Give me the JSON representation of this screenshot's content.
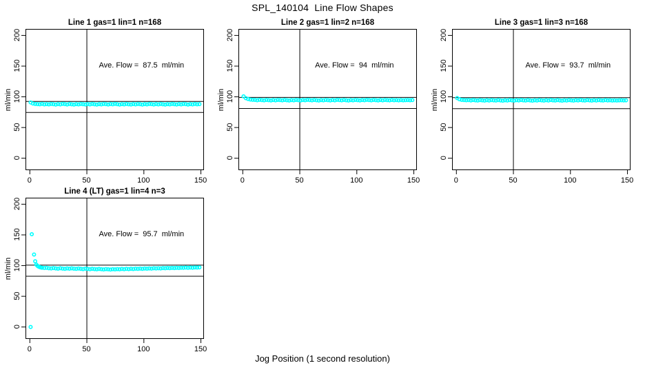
{
  "figure": {
    "title": "SPL_140104  Line Flow Shapes",
    "xlabel": "Jog Position (1 second resolution)",
    "background": "#ffffff",
    "axis_color": "#000000",
    "point_color": "#00ffff"
  },
  "chart_data": [
    {
      "type": "scatter",
      "title": "Line 1 gas=1 lin=1 n=168",
      "annotation": "Ave. Flow =  87.5  ml/min",
      "ave_flow": 87.5,
      "n": 168,
      "ylabel": "ml/min",
      "x_ticks": [
        0,
        50,
        100,
        150
      ],
      "y_ticks": [
        0,
        50,
        100,
        150,
        200
      ],
      "xlim": [
        -3.5,
        153
      ],
      "ylim": [
        -20,
        210
      ],
      "vline_x": 50,
      "hlines": [
        92.5,
        74.5
      ],
      "grid": false,
      "points": [
        [
          1,
          90.3
        ],
        [
          3,
          88.6
        ],
        [
          5,
          87.9
        ],
        [
          7,
          87.5
        ],
        [
          9,
          87.3
        ],
        [
          11,
          88.0
        ],
        [
          13,
          87.2
        ],
        [
          15,
          87.6
        ],
        [
          17,
          87.1
        ],
        [
          19,
          87.8
        ],
        [
          21,
          87.4
        ],
        [
          23,
          86.9
        ],
        [
          25,
          87.7
        ],
        [
          27,
          87.2
        ],
        [
          29,
          88.0
        ],
        [
          31,
          87.5
        ],
        [
          33,
          87.0
        ],
        [
          35,
          87.8
        ],
        [
          37,
          87.3
        ],
        [
          39,
          86.8
        ],
        [
          41,
          87.6
        ],
        [
          43,
          87.1
        ],
        [
          45,
          87.9
        ],
        [
          47,
          87.4
        ],
        [
          49,
          87.0
        ],
        [
          51,
          87.7
        ],
        [
          53,
          87.2
        ],
        [
          55,
          87.8
        ],
        [
          57,
          87.3
        ],
        [
          59,
          86.9
        ],
        [
          61,
          87.6
        ],
        [
          63,
          87.2
        ],
        [
          65,
          87.9
        ],
        [
          67,
          87.5
        ],
        [
          69,
          87.0
        ],
        [
          71,
          87.7
        ],
        [
          73,
          87.3
        ],
        [
          75,
          88.0
        ],
        [
          77,
          87.4
        ],
        [
          79,
          86.9
        ],
        [
          81,
          87.6
        ],
        [
          83,
          87.1
        ],
        [
          85,
          87.8
        ],
        [
          87,
          87.3
        ],
        [
          89,
          87.0
        ],
        [
          91,
          87.7
        ],
        [
          93,
          87.2
        ],
        [
          95,
          87.9
        ],
        [
          97,
          87.4
        ],
        [
          99,
          86.8
        ],
        [
          101,
          87.6
        ],
        [
          103,
          87.1
        ],
        [
          105,
          87.8
        ],
        [
          107,
          87.5
        ],
        [
          109,
          87.0
        ],
        [
          111,
          87.7
        ],
        [
          113,
          87.2
        ],
        [
          115,
          87.9
        ],
        [
          117,
          87.3
        ],
        [
          119,
          86.9
        ],
        [
          121,
          87.6
        ],
        [
          123,
          87.2
        ],
        [
          125,
          87.8
        ],
        [
          127,
          87.4
        ],
        [
          129,
          87.0
        ],
        [
          131,
          87.7
        ],
        [
          133,
          87.1
        ],
        [
          135,
          87.9
        ],
        [
          137,
          87.5
        ],
        [
          139,
          86.9
        ],
        [
          141,
          87.6
        ],
        [
          143,
          87.2
        ],
        [
          145,
          87.8
        ],
        [
          147,
          87.3
        ],
        [
          149,
          87.5
        ]
      ]
    },
    {
      "type": "scatter",
      "title": "Line 2 gas=1 lin=2 n=168",
      "annotation": "Ave. Flow =  94  ml/min",
      "ave_flow": 94,
      "n": 168,
      "ylabel": "ml/min",
      "x_ticks": [
        0,
        50,
        100,
        150
      ],
      "y_ticks": [
        0,
        50,
        100,
        150,
        200
      ],
      "xlim": [
        -3.5,
        153
      ],
      "ylim": [
        -20,
        210
      ],
      "vline_x": 50,
      "hlines": [
        99,
        81
      ],
      "grid": false,
      "points": [
        [
          1,
          100.2
        ],
        [
          3,
          97.2
        ],
        [
          5,
          95.8
        ],
        [
          7,
          95.0
        ],
        [
          9,
          94.6
        ],
        [
          11,
          94.4
        ],
        [
          13,
          93.9
        ],
        [
          15,
          94.6
        ],
        [
          17,
          94.1
        ],
        [
          19,
          93.7
        ],
        [
          21,
          94.4
        ],
        [
          23,
          94.0
        ],
        [
          25,
          93.6
        ],
        [
          27,
          94.3
        ],
        [
          29,
          93.8
        ],
        [
          31,
          94.5
        ],
        [
          33,
          94.1
        ],
        [
          35,
          93.7
        ],
        [
          37,
          94.4
        ],
        [
          39,
          93.9
        ],
        [
          41,
          93.5
        ],
        [
          43,
          94.2
        ],
        [
          45,
          93.8
        ],
        [
          47,
          94.5
        ],
        [
          49,
          94.0
        ],
        [
          51,
          93.6
        ],
        [
          53,
          94.3
        ],
        [
          55,
          93.9
        ],
        [
          57,
          94.6
        ],
        [
          59,
          94.1
        ],
        [
          61,
          93.7
        ],
        [
          63,
          94.4
        ],
        [
          65,
          93.9
        ],
        [
          67,
          93.5
        ],
        [
          69,
          94.2
        ],
        [
          71,
          93.8
        ],
        [
          73,
          94.5
        ],
        [
          75,
          94.0
        ],
        [
          77,
          93.6
        ],
        [
          79,
          94.3
        ],
        [
          81,
          93.8
        ],
        [
          83,
          94.6
        ],
        [
          85,
          94.1
        ],
        [
          87,
          93.7
        ],
        [
          89,
          94.4
        ],
        [
          91,
          93.9
        ],
        [
          93,
          93.5
        ],
        [
          95,
          94.2
        ],
        [
          97,
          93.8
        ],
        [
          99,
          94.5
        ],
        [
          101,
          94.0
        ],
        [
          103,
          93.6
        ],
        [
          105,
          94.3
        ],
        [
          107,
          93.9
        ],
        [
          109,
          94.6
        ],
        [
          111,
          94.1
        ],
        [
          113,
          93.7
        ],
        [
          115,
          94.4
        ],
        [
          117,
          94.0
        ],
        [
          119,
          93.6
        ],
        [
          121,
          94.3
        ],
        [
          123,
          93.8
        ],
        [
          125,
          94.5
        ],
        [
          127,
          94.0
        ],
        [
          129,
          93.7
        ],
        [
          131,
          94.4
        ],
        [
          133,
          93.9
        ],
        [
          135,
          94.2
        ],
        [
          137,
          93.8
        ],
        [
          139,
          94.1
        ],
        [
          141,
          93.8
        ],
        [
          143,
          94.0
        ],
        [
          145,
          94.2
        ],
        [
          147,
          93.9
        ],
        [
          149,
          94.1
        ]
      ]
    },
    {
      "type": "scatter",
      "title": "Line 3 gas=1 lin=3 n=168",
      "annotation": "Ave. Flow =  93.7  ml/min",
      "ave_flow": 93.7,
      "n": 168,
      "ylabel": "ml/min",
      "x_ticks": [
        0,
        50,
        100,
        150
      ],
      "y_ticks": [
        0,
        50,
        100,
        150,
        200
      ],
      "xlim": [
        -3.5,
        153
      ],
      "ylim": [
        -20,
        210
      ],
      "vline_x": 50,
      "hlines": [
        98.7,
        80.7
      ],
      "grid": false,
      "points": [
        [
          1,
          97.4
        ],
        [
          3,
          95.4
        ],
        [
          5,
          94.5
        ],
        [
          7,
          94.2
        ],
        [
          9,
          93.9
        ],
        [
          11,
          94.1
        ],
        [
          13,
          93.6
        ],
        [
          15,
          94.3
        ],
        [
          17,
          93.8
        ],
        [
          19,
          93.4
        ],
        [
          21,
          94.1
        ],
        [
          23,
          93.7
        ],
        [
          25,
          93.3
        ],
        [
          27,
          94.0
        ],
        [
          29,
          93.5
        ],
        [
          31,
          94.2
        ],
        [
          33,
          93.8
        ],
        [
          35,
          93.4
        ],
        [
          37,
          94.1
        ],
        [
          39,
          93.6
        ],
        [
          41,
          93.2
        ],
        [
          43,
          93.9
        ],
        [
          45,
          93.5
        ],
        [
          47,
          94.2
        ],
        [
          49,
          93.7
        ],
        [
          51,
          93.3
        ],
        [
          53,
          94.0
        ],
        [
          55,
          93.6
        ],
        [
          57,
          94.3
        ],
        [
          59,
          93.8
        ],
        [
          61,
          93.4
        ],
        [
          63,
          94.1
        ],
        [
          65,
          93.6
        ],
        [
          67,
          93.2
        ],
        [
          69,
          93.9
        ],
        [
          71,
          93.5
        ],
        [
          73,
          94.2
        ],
        [
          75,
          93.7
        ],
        [
          77,
          93.3
        ],
        [
          79,
          94.0
        ],
        [
          81,
          93.5
        ],
        [
          83,
          94.3
        ],
        [
          85,
          93.8
        ],
        [
          87,
          93.4
        ],
        [
          89,
          94.1
        ],
        [
          91,
          93.6
        ],
        [
          93,
          93.2
        ],
        [
          95,
          93.9
        ],
        [
          97,
          93.5
        ],
        [
          99,
          94.2
        ],
        [
          101,
          93.7
        ],
        [
          103,
          93.3
        ],
        [
          105,
          94.0
        ],
        [
          107,
          93.6
        ],
        [
          109,
          94.3
        ],
        [
          111,
          93.8
        ],
        [
          113,
          93.4
        ],
        [
          115,
          94.1
        ],
        [
          117,
          93.7
        ],
        [
          119,
          93.3
        ],
        [
          121,
          94.0
        ],
        [
          123,
          93.5
        ],
        [
          125,
          94.2
        ],
        [
          127,
          93.7
        ],
        [
          129,
          93.4
        ],
        [
          131,
          94.1
        ],
        [
          133,
          93.6
        ],
        [
          135,
          93.9
        ],
        [
          137,
          93.5
        ],
        [
          139,
          93.8
        ],
        [
          141,
          93.5
        ],
        [
          143,
          93.7
        ],
        [
          145,
          93.9
        ],
        [
          147,
          93.6
        ],
        [
          149,
          93.8
        ]
      ]
    },
    {
      "type": "scatter",
      "title": "Line 4 (LT) gas=1 lin=4 n=3",
      "annotation": "Ave. Flow =  95.7  ml/min",
      "ave_flow": 95.7,
      "n": 3,
      "ylabel": "ml/min",
      "x_ticks": [
        0,
        50,
        100,
        150
      ],
      "y_ticks": [
        0,
        50,
        100,
        150,
        200
      ],
      "xlim": [
        -3.5,
        153
      ],
      "ylim": [
        -20,
        210
      ],
      "vline_x": 50,
      "hlines": [
        100.7,
        82.7
      ],
      "grid": false,
      "points": [
        [
          1,
          -0.5
        ],
        [
          2,
          150.5
        ],
        [
          4,
          117.5
        ],
        [
          5,
          106.5
        ],
        [
          6,
          101.0
        ],
        [
          7,
          99.0
        ],
        [
          8,
          97.8
        ],
        [
          9,
          97.0
        ],
        [
          10,
          96.4
        ],
        [
          11,
          96.0
        ],
        [
          13,
          95.5
        ],
        [
          15,
          95.9
        ],
        [
          17,
          95.2
        ],
        [
          19,
          94.8
        ],
        [
          21,
          95.4
        ],
        [
          23,
          94.9
        ],
        [
          25,
          94.5
        ],
        [
          27,
          95.1
        ],
        [
          29,
          94.6
        ],
        [
          31,
          94.2
        ],
        [
          33,
          94.8
        ],
        [
          35,
          94.4
        ],
        [
          37,
          95.0
        ],
        [
          39,
          94.5
        ],
        [
          41,
          94.1
        ],
        [
          43,
          94.7
        ],
        [
          45,
          94.2
        ],
        [
          47,
          93.8
        ],
        [
          49,
          94.4
        ],
        [
          51,
          94.0
        ],
        [
          53,
          93.6
        ],
        [
          55,
          94.2
        ],
        [
          57,
          93.8
        ],
        [
          59,
          93.4
        ],
        [
          61,
          94.0
        ],
        [
          63,
          93.6
        ],
        [
          65,
          93.2
        ],
        [
          67,
          93.8
        ],
        [
          69,
          93.4
        ],
        [
          71,
          93.0
        ],
        [
          73,
          93.6
        ],
        [
          75,
          93.3
        ],
        [
          77,
          93.8
        ],
        [
          79,
          93.4
        ],
        [
          81,
          94.0
        ],
        [
          83,
          93.6
        ],
        [
          85,
          94.1
        ],
        [
          87,
          93.8
        ],
        [
          89,
          94.3
        ],
        [
          91,
          93.9
        ],
        [
          93,
          94.4
        ],
        [
          95,
          94.1
        ],
        [
          97,
          94.6
        ],
        [
          99,
          94.2
        ],
        [
          101,
          94.7
        ],
        [
          103,
          94.4
        ],
        [
          105,
          94.9
        ],
        [
          107,
          94.6
        ],
        [
          109,
          95.1
        ],
        [
          111,
          94.8
        ],
        [
          113,
          95.2
        ],
        [
          115,
          94.9
        ],
        [
          117,
          95.4
        ],
        [
          119,
          95.1
        ],
        [
          121,
          95.6
        ],
        [
          123,
          95.3
        ],
        [
          125,
          95.7
        ],
        [
          127,
          95.4
        ],
        [
          129,
          95.9
        ],
        [
          131,
          95.6
        ],
        [
          133,
          96.0
        ],
        [
          135,
          95.8
        ],
        [
          137,
          96.2
        ],
        [
          139,
          95.9
        ],
        [
          141,
          96.3
        ],
        [
          143,
          96.0
        ],
        [
          145,
          96.4
        ],
        [
          147,
          96.2
        ],
        [
          149,
          96.5
        ]
      ]
    }
  ]
}
